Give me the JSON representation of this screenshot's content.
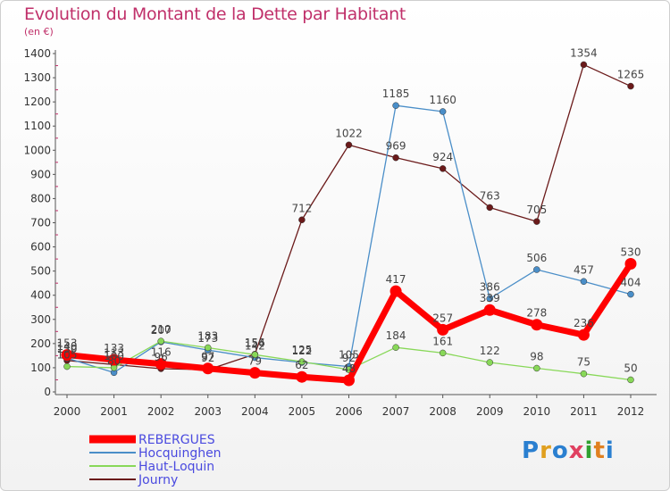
{
  "header": {
    "title": "Evolution du Montant de la Dette par Habitant",
    "subtitle": "(en €)"
  },
  "logo": {
    "text": "Proxiti",
    "letters": [
      "P",
      "r",
      "o",
      "x",
      "i",
      "t",
      "i"
    ],
    "colors": [
      "#2a7fd0",
      "#e0a020",
      "#2a7fd0",
      "#e04060",
      "#30a030",
      "#e08020",
      "#2a7fd0"
    ]
  },
  "chart_data": {
    "type": "line",
    "x": [
      "2000",
      "2001",
      "2002",
      "2003",
      "2004",
      "2005",
      "2006",
      "2007",
      "2008",
      "2009",
      "2010",
      "2011",
      "2012"
    ],
    "ylim": [
      0,
      1400
    ],
    "yticks": [
      "0",
      "100",
      "200",
      "300",
      "400",
      "500",
      "600",
      "700",
      "800",
      "900",
      "1000",
      "1100",
      "1200",
      "1300",
      "1400"
    ],
    "grid": false,
    "legend_position": "bottom-left",
    "series": [
      {
        "name": "Journy",
        "color": "#6b1a1a",
        "values": [
          130,
          113,
          96,
          92,
          156,
          712,
          1022,
          969,
          924,
          763,
          705,
          1354,
          1265
        ],
        "labels": [
          "130",
          "113",
          "96",
          "92",
          "156",
          "712",
          "1022",
          "969",
          "924",
          "763",
          "705",
          "1354",
          "1265"
        ]
      },
      {
        "name": "Hocquinghen",
        "color": "#4a8ec8",
        "values": [
          140,
          80,
          207,
          173,
          142,
          122,
          105,
          1185,
          1160,
          386,
          506,
          457,
          404
        ],
        "labels": [
          "140",
          "80",
          "207",
          "173",
          "142",
          "122",
          "105",
          "1185",
          "1160",
          "386",
          "506",
          "457",
          "404"
        ]
      },
      {
        "name": "Haut-Loquin",
        "color": "#88d858",
        "values": [
          105,
          100,
          210,
          183,
          154,
          125,
          92,
          184,
          161,
          122,
          98,
          75,
          50
        ],
        "labels": [
          "105",
          "100",
          "210",
          "183",
          "154",
          "125",
          "92",
          "184",
          "161",
          "122",
          "98",
          "75",
          "50"
        ]
      },
      {
        "name": "REBERGUES",
        "color": "#ff0000",
        "values": [
          153,
          133,
          116,
          97,
          79,
          62,
          48,
          417,
          257,
          339,
          278,
          236,
          530
        ],
        "labels": [
          "153",
          "133",
          "116",
          "97",
          "79",
          "62",
          "48",
          "417",
          "257",
          "339",
          "278",
          "236",
          "530"
        ]
      }
    ],
    "legend_order": [
      "REBERGUES",
      "Hocquinghen",
      "Haut-Loquin",
      "Journy"
    ]
  }
}
